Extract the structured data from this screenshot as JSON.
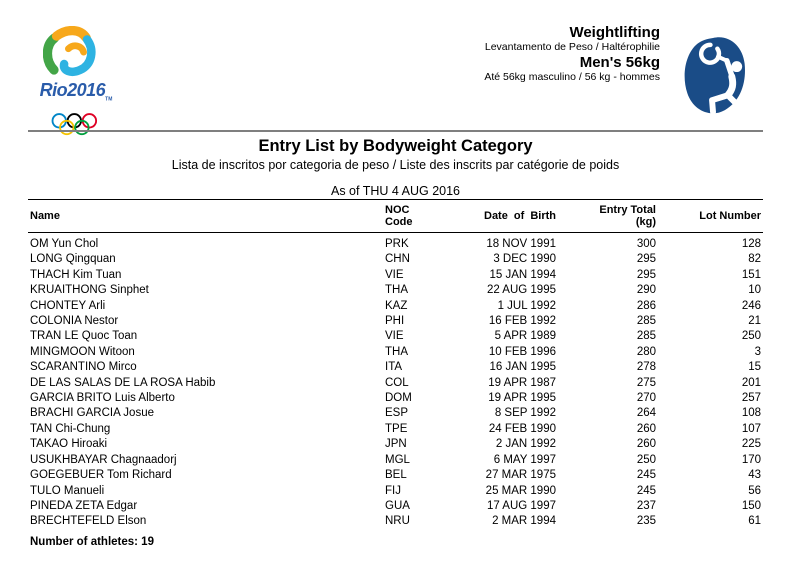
{
  "logo": {
    "wordmark": "Rio2016",
    "trademark": "TM"
  },
  "event_header": {
    "sport": "Weightlifting",
    "sport_translation": "Levantamento de Peso / Haltérophilie",
    "event": "Men's 56kg",
    "event_translation": "Até 56kg masculino / 56 kg - hommes"
  },
  "title": {
    "main": "Entry List by Bodyweight Category",
    "subtitle": "Lista de inscritos por categoria de peso / Liste des inscrits par catégorie de poids",
    "as_of": "As of THU 4 AUG 2016"
  },
  "table": {
    "columns": {
      "name": "Name",
      "noc_line1": "NOC",
      "noc_line2": "Code",
      "dob": "Date of Birth",
      "entry_line1": "Entry Total",
      "entry_line2": "(kg)",
      "lot": "Lot Number"
    },
    "rows": [
      {
        "name": "OM Yun Chol",
        "noc": "PRK",
        "dob": "18 NOV 1991",
        "entry_total": "300",
        "lot": "128"
      },
      {
        "name": "LONG Qingquan",
        "noc": "CHN",
        "dob": "3 DEC 1990",
        "entry_total": "295",
        "lot": "82"
      },
      {
        "name": "THACH Kim Tuan",
        "noc": "VIE",
        "dob": "15 JAN 1994",
        "entry_total": "295",
        "lot": "151"
      },
      {
        "name": "KRUAITHONG Sinphet",
        "noc": "THA",
        "dob": "22 AUG 1995",
        "entry_total": "290",
        "lot": "10"
      },
      {
        "name": "CHONTEY Arli",
        "noc": "KAZ",
        "dob": "1 JUL 1992",
        "entry_total": "286",
        "lot": "246"
      },
      {
        "name": "COLONIA Nestor",
        "noc": "PHI",
        "dob": "16 FEB 1992",
        "entry_total": "285",
        "lot": "21"
      },
      {
        "name": "TRAN LE Quoc Toan",
        "noc": "VIE",
        "dob": "5 APR 1989",
        "entry_total": "285",
        "lot": "250"
      },
      {
        "name": "MINGMOON Witoon",
        "noc": "THA",
        "dob": "10 FEB 1996",
        "entry_total": "280",
        "lot": "3"
      },
      {
        "name": "SCARANTINO Mirco",
        "noc": "ITA",
        "dob": "16 JAN 1995",
        "entry_total": "278",
        "lot": "15"
      },
      {
        "name": "DE LAS SALAS DE LA ROSA Habib",
        "noc": "COL",
        "dob": "19 APR 1987",
        "entry_total": "275",
        "lot": "201"
      },
      {
        "name": "GARCIA BRITO Luis Alberto",
        "noc": "DOM",
        "dob": "19 APR 1995",
        "entry_total": "270",
        "lot": "257"
      },
      {
        "name": "BRACHI GARCIA Josue",
        "noc": "ESP",
        "dob": "8 SEP 1992",
        "entry_total": "264",
        "lot": "108"
      },
      {
        "name": "TAN Chi-Chung",
        "noc": "TPE",
        "dob": "24 FEB 1990",
        "entry_total": "260",
        "lot": "107"
      },
      {
        "name": "TAKAO Hiroaki",
        "noc": "JPN",
        "dob": "2 JAN 1992",
        "entry_total": "260",
        "lot": "225"
      },
      {
        "name": "USUKHBAYAR Chagnaadorj",
        "noc": "MGL",
        "dob": "6 MAY 1997",
        "entry_total": "250",
        "lot": "170"
      },
      {
        "name": "GOEGEBUER Tom Richard",
        "noc": "BEL",
        "dob": "27 MAR 1975",
        "entry_total": "245",
        "lot": "43"
      },
      {
        "name": "TULO Manueli",
        "noc": "FIJ",
        "dob": "25 MAR 1990",
        "entry_total": "245",
        "lot": "56"
      },
      {
        "name": "PINEDA ZETA Edgar",
        "noc": "GUA",
        "dob": "17 AUG 1997",
        "entry_total": "237",
        "lot": "150"
      },
      {
        "name": "BRECHTEFELD Elson",
        "noc": "NRU",
        "dob": "2 MAR 1994",
        "entry_total": "235",
        "lot": "61"
      }
    ]
  },
  "footer": {
    "count_text": "Number of athletes: 19"
  },
  "colors": {
    "separator_gray": "#7f7f7f",
    "picto_blue": "#1a4c87",
    "logo_green": "#43a547",
    "logo_yellow": "#f7a81b",
    "logo_cyan": "#2eb3e2",
    "wordmark_blue": "#2a5caa",
    "ring_blue": "#0085c7",
    "ring_black": "#000000",
    "ring_red": "#df0024",
    "ring_yellow": "#f4c300",
    "ring_green": "#009f3d"
  }
}
